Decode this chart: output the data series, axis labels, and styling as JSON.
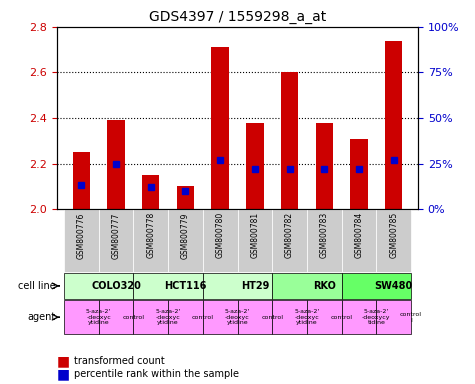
{
  "title": "GDS4397 / 1559298_a_at",
  "samples": [
    "GSM800776",
    "GSM800777",
    "GSM800778",
    "GSM800779",
    "GSM800780",
    "GSM800781",
    "GSM800782",
    "GSM800783",
    "GSM800784",
    "GSM800785"
  ],
  "red_values": [
    2.25,
    2.39,
    2.15,
    2.1,
    2.71,
    2.38,
    2.6,
    2.38,
    2.31,
    2.74
  ],
  "blue_values": [
    0.14,
    0.24,
    0.12,
    0.11,
    0.27,
    0.22,
    0.22,
    0.22,
    0.22,
    0.27
  ],
  "blue_pct": [
    13,
    25,
    12,
    10,
    27,
    22,
    22,
    22,
    22,
    27
  ],
  "ymin": 2.0,
  "ymax": 2.8,
  "y2min": 0,
  "y2max": 100,
  "yticks": [
    2.0,
    2.2,
    2.4,
    2.6,
    2.8
  ],
  "y2ticks": [
    0,
    25,
    50,
    75,
    100
  ],
  "y2ticklabels": [
    "0%",
    "25%",
    "50%",
    "75%",
    "100%"
  ],
  "cell_lines": [
    {
      "name": "COLO320",
      "start": 0,
      "end": 2,
      "color": "#ccffcc"
    },
    {
      "name": "HCT116",
      "start": 2,
      "end": 4,
      "color": "#ccffcc"
    },
    {
      "name": "HT29",
      "start": 4,
      "end": 6,
      "color": "#ccffcc"
    },
    {
      "name": "RKO",
      "start": 6,
      "end": 8,
      "color": "#99ff99"
    },
    {
      "name": "SW480",
      "start": 8,
      "end": 10,
      "color": "#66ff66"
    }
  ],
  "agents": [
    {
      "name": "5-aza-2'\n-deoxyc\nytidine",
      "start": 0,
      "end": 1,
      "color": "#ff99ff"
    },
    {
      "name": "control",
      "start": 1,
      "end": 2,
      "color": "#ff99ff"
    },
    {
      "name": "5-aza-2'\n-deoxyc\nytidine",
      "start": 2,
      "end": 3,
      "color": "#ff99ff"
    },
    {
      "name": "control",
      "start": 3,
      "end": 4,
      "color": "#ff99ff"
    },
    {
      "name": "5-aza-2'\n-deoxyc\nytidine",
      "start": 4,
      "end": 5,
      "color": "#ff99ff"
    },
    {
      "name": "control",
      "start": 5,
      "end": 6,
      "color": "#ff99ff"
    },
    {
      "name": "5-aza-2'\n-deoxyc\nytidine",
      "start": 6,
      "end": 7,
      "color": "#ff99ff"
    },
    {
      "name": "control",
      "start": 7,
      "end": 8,
      "color": "#ff99ff"
    },
    {
      "name": "5-aza-2'\n-deoxycy\ntidine",
      "start": 8,
      "end": 9,
      "color": "#ff99ff"
    },
    {
      "name": "control\nl",
      "start": 9,
      "end": 10,
      "color": "#ff99ff"
    }
  ],
  "bar_color": "#cc0000",
  "blue_color": "#0000cc",
  "grid_color": "#000000",
  "tick_label_color_left": "#cc0000",
  "tick_label_color_right": "#0000cc",
  "bar_width": 0.5,
  "sample_bg_color": "#cccccc",
  "sample_bg_alt_color": "#aaaaaa"
}
